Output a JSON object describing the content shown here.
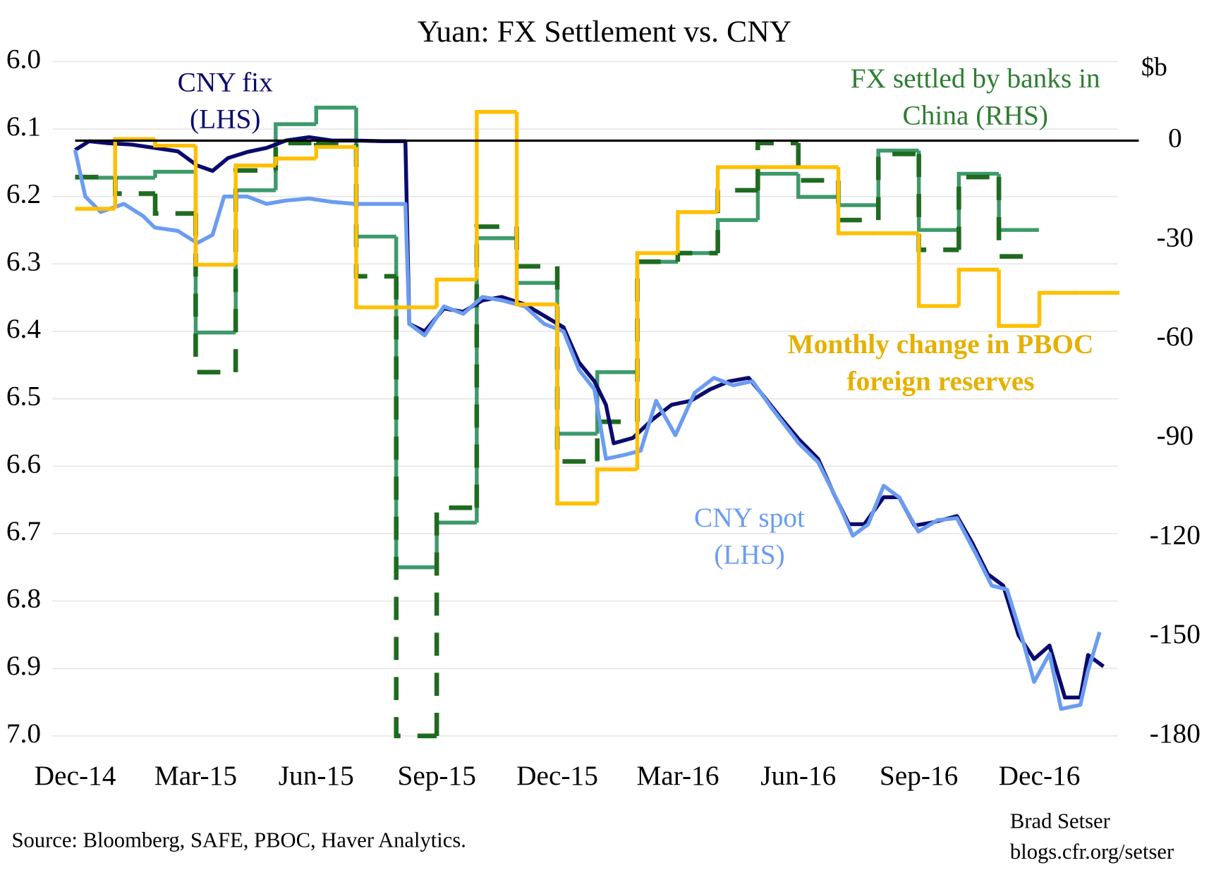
{
  "chart_data": {
    "type": "line",
    "title": "Yuan: FX Settlement vs. CNY",
    "y2_unit": "$b",
    "source": "Source: Bloomberg, SAFE, PBOC, Haver Analytics.",
    "credit": [
      "Brad Setser",
      "blogs.cfr.org/setser"
    ],
    "xlim": [
      2014.87,
      2017.08
    ],
    "xticks": [
      {
        "value": 2014.917,
        "label": "Dec-14"
      },
      {
        "value": 2015.167,
        "label": "Mar-15"
      },
      {
        "value": 2015.417,
        "label": "Jun-15"
      },
      {
        "value": 2015.667,
        "label": "Sep-15"
      },
      {
        "value": 2015.917,
        "label": "Dec-15"
      },
      {
        "value": 2016.167,
        "label": "Mar-16"
      },
      {
        "value": 2016.417,
        "label": "Jun-16"
      },
      {
        "value": 2016.667,
        "label": "Sep-16"
      },
      {
        "value": 2016.917,
        "label": "Dec-16"
      }
    ],
    "ylim": [
      6.0,
      7.0
    ],
    "yticks": [
      {
        "value": 6.0,
        "label": "6.0"
      },
      6.1,
      6.2,
      6.3,
      6.4,
      6.5,
      6.6,
      6.7,
      6.8,
      6.9,
      {
        "value": 7.0,
        "label": "7.0"
      }
    ],
    "y_inverted": true,
    "y2lim": [
      23.9,
      -180
    ],
    "y2ticks": [
      0,
      -30,
      -60,
      -90,
      -120,
      -150,
      -180
    ],
    "grid": true,
    "reference_line": {
      "axis": "y2",
      "value": 0,
      "color": "#000000"
    },
    "series": [
      {
        "color": "#3d9a6a",
        "axis": "y2",
        "step": true,
        "dash": false,
        "x": [
          2014.917,
          2015.0,
          2015.083,
          2015.167,
          2015.25,
          2015.333,
          2015.417,
          2015.5,
          2015.583,
          2015.667,
          2015.75,
          2015.833,
          2015.917,
          2016.0,
          2016.083,
          2016.167,
          2016.25,
          2016.333,
          2016.417,
          2016.5,
          2016.583,
          2016.667,
          2016.75,
          2016.833
        ],
        "values": [
          -11.2,
          -11.2,
          -9.4,
          -58,
          -15,
          5,
          10,
          -29,
          -129,
          -115.5,
          -29.5,
          -43,
          -88.6,
          -70,
          -36.6,
          -34,
          -24,
          -10,
          -17,
          -19.5,
          -3,
          -27,
          -10,
          -27
        ]
      },
      {
        "color": "#1f6b1f",
        "axis": "y2",
        "step": true,
        "dash": true,
        "x": [
          2014.917,
          2015.0,
          2015.083,
          2015.167,
          2015.25,
          2015.333,
          2015.417,
          2015.5,
          2015.583,
          2015.667,
          2015.75,
          2015.833,
          2015.917,
          2016.0,
          2016.083,
          2016.167,
          2016.25,
          2016.333,
          2016.417,
          2016.5,
          2016.583,
          2016.667,
          2016.75,
          2016.833
        ],
        "values": [
          -11,
          -16,
          -22,
          -70,
          -9,
          -0.7,
          -1,
          -41,
          -180,
          -111,
          -26,
          -38,
          -97,
          -85,
          -36.6,
          -34,
          -15,
          -0.7,
          -12,
          -24,
          -4,
          -33,
          -11,
          -35
        ]
      },
      {
        "color": "#ffbf00",
        "axis": "y2",
        "step": true,
        "dash": false,
        "x": [
          2014.917,
          2015.0,
          2015.083,
          2015.167,
          2015.25,
          2015.333,
          2015.417,
          2015.5,
          2015.583,
          2015.667,
          2015.75,
          2015.833,
          2015.917,
          2016.0,
          2016.083,
          2016.167,
          2016.25,
          2016.333,
          2016.417,
          2016.5,
          2016.583,
          2016.667,
          2016.75,
          2016.833,
          2016.917,
          2017.0
        ],
        "values": [
          -20.6,
          0.5,
          -1.5,
          -37.5,
          -7.5,
          -5.4,
          -1.9,
          -50.4,
          -50.4,
          -42,
          8.7,
          -49.5,
          -109.7,
          -99.4,
          -34,
          -21.6,
          -8,
          -8,
          -8,
          -28,
          -28,
          -50,
          -39,
          -56,
          -46,
          -46
        ]
      },
      {
        "color": "#0a0a6e",
        "axis": "y",
        "step": false,
        "dash": false,
        "x": [
          2014.917,
          2014.946,
          2014.986,
          2015.034,
          2015.082,
          2015.13,
          2015.17,
          2015.202,
          2015.234,
          2015.274,
          2015.314,
          2015.354,
          2015.402,
          2015.45,
          2015.498,
          2015.554,
          2015.602,
          2015.61,
          2015.642,
          2015.682,
          2015.722,
          2015.762,
          2015.802,
          2015.85,
          2015.89,
          2015.93,
          2015.962,
          2015.994,
          2016.018,
          2016.034,
          2016.074,
          2016.114,
          2016.154,
          2016.194,
          2016.234,
          2016.274,
          2016.314,
          2016.346,
          2016.378,
          2016.418,
          2016.458,
          2016.49,
          2016.522,
          2016.554,
          2016.594,
          2016.626,
          2016.658,
          2016.698,
          2016.746,
          2016.778,
          2016.81,
          2016.842,
          2016.874,
          2016.906,
          2016.938,
          2016.97,
          2017.002,
          2017.018,
          2017.05
        ],
        "values": [
          6.131,
          6.118,
          6.121,
          6.123,
          6.128,
          6.133,
          6.154,
          6.162,
          6.143,
          6.134,
          6.128,
          6.117,
          6.112,
          6.117,
          6.117,
          6.118,
          6.118,
          6.389,
          6.4,
          6.366,
          6.371,
          6.354,
          6.349,
          6.36,
          6.377,
          6.394,
          6.446,
          6.474,
          6.509,
          6.566,
          6.558,
          6.531,
          6.509,
          6.503,
          6.486,
          6.474,
          6.469,
          6.497,
          6.526,
          6.56,
          6.589,
          6.64,
          6.686,
          6.686,
          6.646,
          6.646,
          6.688,
          6.683,
          6.674,
          6.714,
          6.76,
          6.777,
          6.851,
          6.886,
          6.866,
          6.943,
          6.943,
          6.88,
          6.897
        ]
      },
      {
        "color": "#6b9cf0",
        "axis": "y",
        "step": false,
        "dash": false,
        "x": [
          2014.917,
          2014.938,
          2014.97,
          2015.018,
          2015.058,
          2015.082,
          2015.13,
          2015.17,
          2015.202,
          2015.226,
          2015.274,
          2015.314,
          2015.354,
          2015.402,
          2015.45,
          2015.498,
          2015.554,
          2015.602,
          2015.61,
          2015.642,
          2015.682,
          2015.722,
          2015.762,
          2015.802,
          2015.85,
          2015.89,
          2015.93,
          2015.962,
          2015.994,
          2016.018,
          2016.058,
          2016.09,
          2016.122,
          2016.162,
          2016.202,
          2016.242,
          2016.282,
          2016.322,
          2016.362,
          2016.418,
          2016.458,
          2016.498,
          2016.53,
          2016.562,
          2016.594,
          2016.626,
          2016.666,
          2016.706,
          2016.746,
          2016.786,
          2016.818,
          2016.85,
          2016.882,
          2016.906,
          2016.938,
          2016.962,
          2017.002,
          2017.018,
          2017.042
        ],
        "values": [
          6.131,
          6.2,
          6.223,
          6.211,
          6.229,
          6.246,
          6.251,
          6.269,
          6.257,
          6.2,
          6.2,
          6.211,
          6.206,
          6.203,
          6.208,
          6.211,
          6.211,
          6.211,
          6.389,
          6.406,
          6.363,
          6.374,
          6.349,
          6.354,
          6.363,
          6.389,
          6.4,
          6.457,
          6.486,
          6.589,
          6.583,
          6.577,
          6.503,
          6.554,
          6.491,
          6.469,
          6.48,
          6.474,
          6.514,
          6.566,
          6.594,
          6.651,
          6.703,
          6.686,
          6.629,
          6.646,
          6.697,
          6.68,
          6.677,
          6.731,
          6.777,
          6.783,
          6.857,
          6.92,
          6.878,
          6.96,
          6.954,
          6.903,
          6.846
        ]
      }
    ],
    "annotations": [
      {
        "lines": [
          "CNY fix",
          "(LHS)"
        ],
        "color": "#0a0a6e",
        "bold": false
      },
      {
        "lines": [
          "FX settled by banks in",
          "China (RHS)"
        ],
        "color": "#2e7d32",
        "bold": false
      },
      {
        "lines": [
          "Monthly change in PBOC",
          "foreign reserves"
        ],
        "color": "#e6b000",
        "bold": true
      },
      {
        "lines": [
          "CNY spot",
          "(LHS)"
        ],
        "color": "#6b9cf0",
        "bold": false
      }
    ]
  }
}
